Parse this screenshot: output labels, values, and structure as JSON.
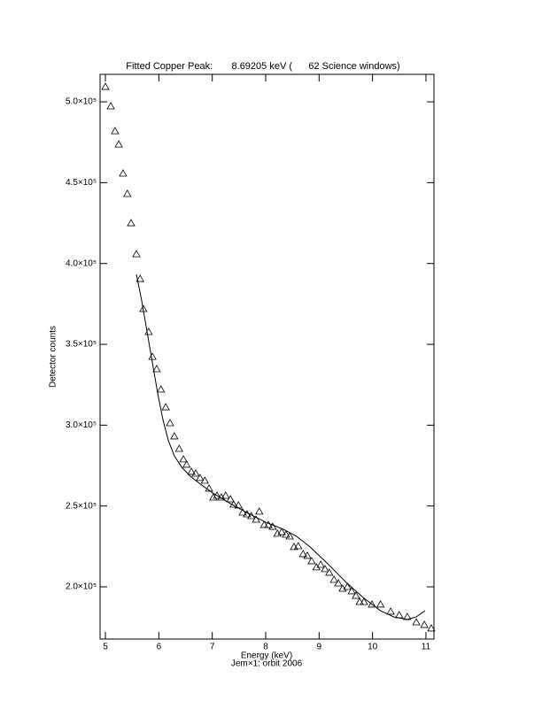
{
  "chart_data": {
    "type": "scatter",
    "title": "Fitted Copper Peak:       8.69205 keV (      62 Science windows)",
    "x_label": "Energy (keV)",
    "subtitle": "Jem×1: orbit 2006",
    "y_label": "Detector counts",
    "xlim": [
      4.9,
      11.15
    ],
    "ylim": [
      167700,
      517000
    ],
    "xticks": [
      5,
      6,
      7,
      8,
      9,
      10,
      11
    ],
    "yticks": [
      {
        "value": 200000,
        "label": "2.0×10⁵"
      },
      {
        "value": 250000,
        "label": "2.5×10⁵"
      },
      {
        "value": 300000,
        "label": "3.0×10⁵"
      },
      {
        "value": 350000,
        "label": "3.5×10⁵"
      },
      {
        "value": 400000,
        "label": "4.0×10⁵"
      },
      {
        "value": 450000,
        "label": "4.5×10⁵"
      },
      {
        "value": 500000,
        "label": "5.0×10⁵"
      }
    ],
    "series": [
      {
        "type": "scatter",
        "marker": "triangle",
        "color": "#000000",
        "x": [
          5.0,
          5.1,
          5.18,
          5.25,
          5.33,
          5.41,
          5.48,
          5.58,
          5.65,
          5.71,
          5.81,
          5.88,
          5.96,
          6.04,
          6.13,
          6.21,
          6.29,
          6.38,
          6.46,
          6.52,
          6.61,
          6.69,
          6.77,
          6.86,
          6.94,
          7.02,
          7.09,
          7.17,
          7.25,
          7.34,
          7.4,
          7.49,
          7.57,
          7.65,
          7.73,
          7.82,
          7.88,
          7.97,
          8.05,
          8.13,
          8.22,
          8.3,
          8.38,
          8.45,
          8.53,
          8.61,
          8.7,
          8.78,
          8.86,
          8.95,
          9.03,
          9.11,
          9.19,
          9.28,
          9.36,
          9.44,
          9.53,
          9.61,
          9.69,
          9.76,
          9.84,
          9.99,
          10.15,
          10.34,
          10.5,
          10.65,
          10.82,
          10.97,
          11.1
        ],
        "values": [
          509300,
          497300,
          481900,
          473700,
          455700,
          443100,
          425000,
          405800,
          390500,
          371900,
          357700,
          342300,
          334700,
          322100,
          311100,
          301300,
          293100,
          285400,
          278900,
          275600,
          271200,
          270100,
          267400,
          265700,
          260800,
          255300,
          256400,
          255300,
          256400,
          254200,
          250900,
          250400,
          246000,
          244900,
          243800,
          241600,
          246600,
          238300,
          238300,
          237200,
          232900,
          233900,
          232300,
          231200,
          224700,
          225200,
          220300,
          219200,
          215900,
          212100,
          213700,
          211000,
          208800,
          204400,
          202200,
          198900,
          200000,
          197300,
          194500,
          190700,
          190700,
          189100,
          189100,
          184700,
          182500,
          181400,
          178100,
          176500,
          174300
        ]
      },
      {
        "type": "line",
        "color": "#000000",
        "x": [
          5.58,
          5.68,
          5.78,
          5.88,
          5.98,
          6.08,
          6.18,
          6.29,
          6.43,
          6.59,
          6.76,
          7.01,
          7.34,
          7.67,
          8.0,
          8.33,
          8.58,
          8.83,
          9.16,
          9.49,
          9.82,
          10.15,
          10.4,
          10.65,
          10.82,
          10.98
        ],
        "values": [
          393300,
          376800,
          357700,
          338500,
          319400,
          302900,
          290300,
          281000,
          273900,
          268400,
          264000,
          258000,
          251500,
          245500,
          240000,
          235600,
          231200,
          224700,
          214300,
          203300,
          193500,
          185200,
          181400,
          179800,
          181400,
          185200
        ]
      }
    ]
  }
}
